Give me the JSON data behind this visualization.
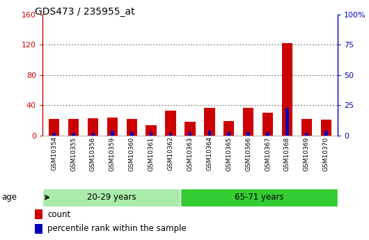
{
  "title": "GDS473 / 235955_at",
  "samples": [
    "GSM10354",
    "GSM10355",
    "GSM10356",
    "GSM10359",
    "GSM10360",
    "GSM10361",
    "GSM10362",
    "GSM10363",
    "GSM10364",
    "GSM10365",
    "GSM10366",
    "GSM10367",
    "GSM10368",
    "GSM10369",
    "GSM10370"
  ],
  "count_values": [
    22,
    22,
    23,
    24,
    22,
    14,
    33,
    18,
    37,
    19,
    37,
    30,
    122,
    22,
    21
  ],
  "percentile_values": [
    2,
    2,
    2,
    4,
    3,
    3,
    2,
    3,
    4,
    3,
    3,
    3,
    23,
    2,
    4
  ],
  "group1_label": "20-29 years",
  "group2_label": "65-71 years",
  "group1_count": 7,
  "group2_count": 8,
  "ylim_left": [
    0,
    160
  ],
  "ylim_right": [
    0,
    100
  ],
  "yticks_left": [
    0,
    40,
    80,
    120,
    160
  ],
  "yticks_right": [
    0,
    25,
    50,
    75,
    100
  ],
  "yticklabels_left": [
    "0",
    "40",
    "80",
    "120",
    "160"
  ],
  "yticklabels_right": [
    "0",
    "25",
    "50",
    "75",
    "100%"
  ],
  "yticklabels_right_top": "100%",
  "count_color": "#cc0000",
  "percentile_color": "#0000bb",
  "group1_bg": "#aaeaaa",
  "group2_bg": "#33cc33",
  "age_label": "age",
  "legend_count": "count",
  "legend_percentile": "percentile rank within the sample",
  "bar_width": 0.55,
  "left_axis_color": "#cc0000",
  "right_axis_color": "#0000bb",
  "grid_color": "#333333",
  "xtick_bg": "#d8d8d8",
  "fig_width": 5.3,
  "fig_height": 3.45,
  "dpi": 100
}
